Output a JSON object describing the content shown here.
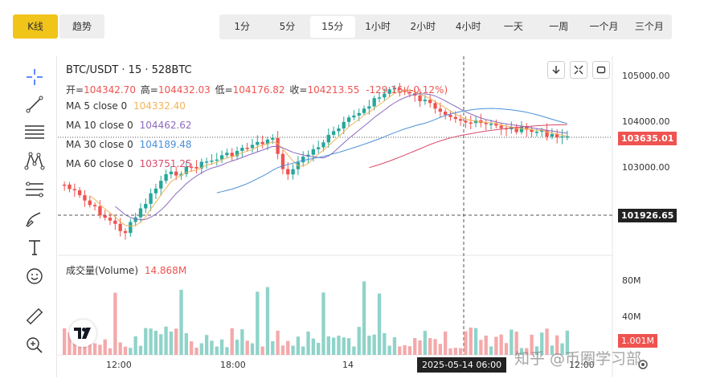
{
  "top_tabs": {
    "kline": "K线",
    "trend": "趋势"
  },
  "intervals": [
    "1分",
    "5分",
    "15分",
    "1小时",
    "2小时",
    "4小时",
    "一天",
    "一周",
    "一个月",
    "三个月"
  ],
  "active_interval": "15分",
  "chart": {
    "symbol": "BTC/USDT · 15 · 528BTC",
    "open_label": "开=",
    "open_value": "104342.70",
    "high_label": "高=",
    "high_value": "104432.03",
    "low_label": "低=",
    "low_value": "104176.82",
    "close_label": "收=",
    "close_value": "104213.55",
    "change": "-129.16 (-0.12%)",
    "ma": [
      {
        "label": "MA 5 close 0",
        "value": "104332.40",
        "color": "#f0b45a"
      },
      {
        "label": "MA 10 close 0",
        "value": "104462.62",
        "color": "#8e6bbf"
      },
      {
        "label": "MA 30 close 0",
        "value": "104189.48",
        "color": "#4a90d9"
      },
      {
        "label": "MA 60 close 0",
        "value": "103751.25",
        "color": "#d94a6a"
      }
    ],
    "price_axis": [
      "105000.00",
      "104000.00",
      "103000.00"
    ],
    "last_price": "103635.01",
    "crosshair_price": "101926.65",
    "volume_title": "成交量(Volume)",
    "volume_value": "14.868M",
    "volume_axis": [
      "80M",
      "40M"
    ],
    "volume_last": "1.001M",
    "time_axis": [
      "12:00",
      "18:00",
      "14",
      "12:00"
    ],
    "crosshair_time": "2025-05-14  06:00",
    "colors": {
      "up": "#26a69a",
      "down": "#ef5350",
      "last": "#ef5350",
      "crosshair_tag": "#222222"
    }
  },
  "watermark": "知乎 @币圈学习部"
}
